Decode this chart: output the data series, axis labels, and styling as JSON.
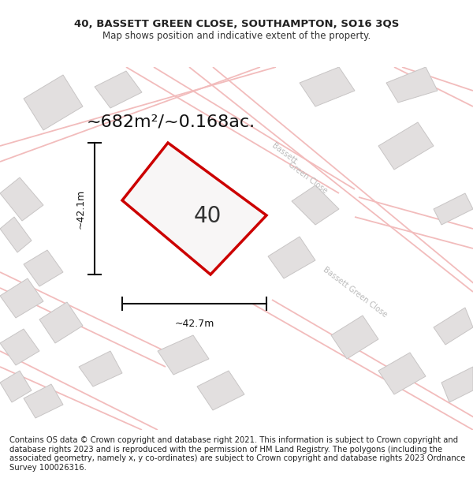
{
  "title_line1": "40, BASSETT GREEN CLOSE, SOUTHAMPTON, SO16 3QS",
  "title_line2": "Map shows position and indicative extent of the property.",
  "area_label": "~682m²/~0.168ac.",
  "number_label": "40",
  "dim_horizontal": "~42.7m",
  "dim_vertical": "~42.1m",
  "footer_text": "Contains OS data © Crown copyright and database right 2021. This information is subject to Crown copyright and database rights 2023 and is reproduced with the permission of HM Land Registry. The polygons (including the associated geometry, namely x, y co-ordinates) are subject to Crown copyright and database rights 2023 Ordnance Survey 100026316.",
  "map_bg": "#f8f6f6",
  "building_fill": "#e2dfdf",
  "building_stroke": "#c8c5c5",
  "road_pink": "#f2bcbc",
  "plot_stroke": "#cc0000",
  "plot_fill": "#f8f6f6",
  "dim_line_color": "#111111",
  "title_fontsize": 9.5,
  "subtitle_fontsize": 8.5,
  "area_fontsize": 17,
  "number_fontsize": 20,
  "dim_fontsize": 9,
  "footer_fontsize": 7.2,
  "street_color": "#bbbbbb",
  "street_fontsize": 7
}
